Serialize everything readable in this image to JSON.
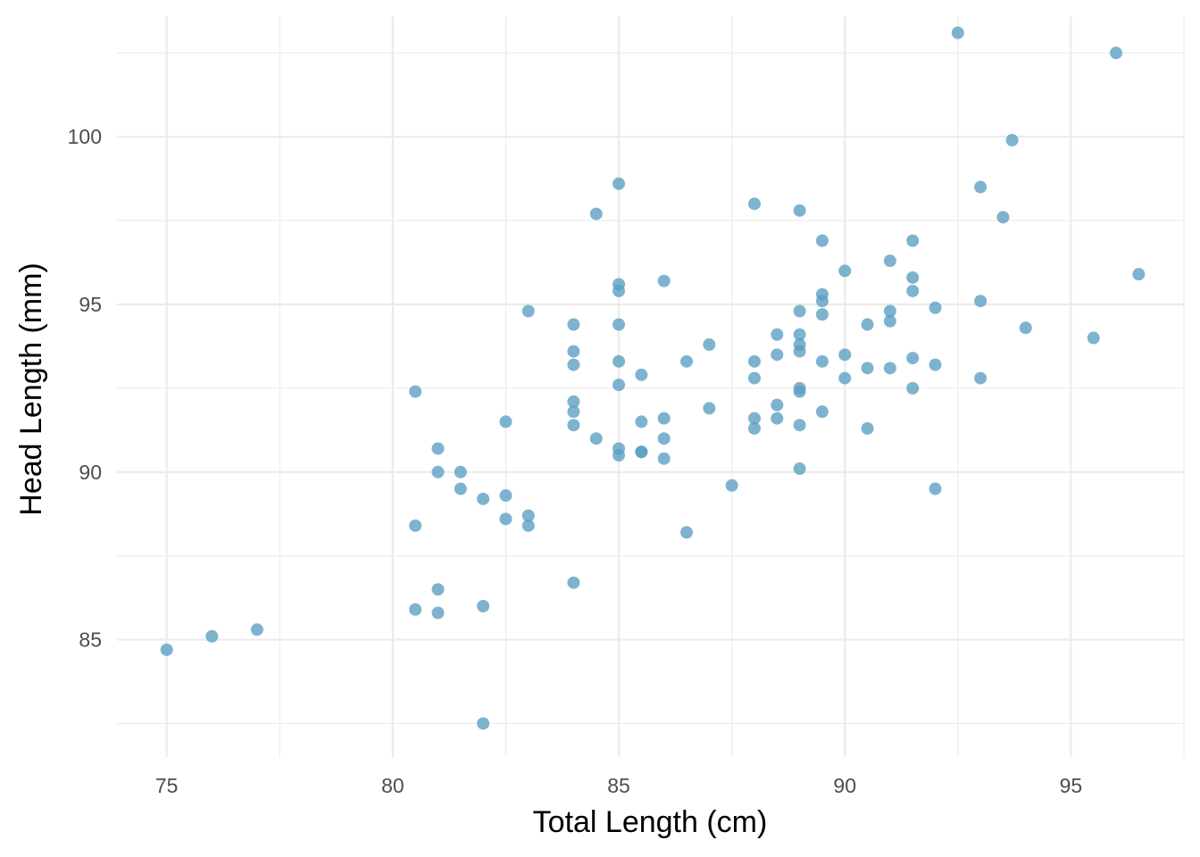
{
  "chart_data": {
    "type": "scatter",
    "xlabel": "Total Length (cm)",
    "ylabel": "Head Length (mm)",
    "xlim": [
      73.9,
      97.5
    ],
    "ylim": [
      81.5,
      103.6
    ],
    "x_ticks": [
      75,
      80,
      85,
      90,
      95
    ],
    "y_ticks": [
      85,
      90,
      95,
      100
    ],
    "grid": true,
    "point_color": "#5a9ec1",
    "points": [
      {
        "x": 75.0,
        "y": 84.7
      },
      {
        "x": 76.0,
        "y": 85.1
      },
      {
        "x": 77.0,
        "y": 85.3
      },
      {
        "x": 80.5,
        "y": 92.4
      },
      {
        "x": 80.5,
        "y": 88.4
      },
      {
        "x": 80.5,
        "y": 85.9
      },
      {
        "x": 81.0,
        "y": 90.7
      },
      {
        "x": 81.0,
        "y": 90.0
      },
      {
        "x": 81.0,
        "y": 86.5
      },
      {
        "x": 81.0,
        "y": 85.8
      },
      {
        "x": 81.5,
        "y": 90.0
      },
      {
        "x": 81.5,
        "y": 89.5
      },
      {
        "x": 82.0,
        "y": 89.2
      },
      {
        "x": 82.0,
        "y": 86.0
      },
      {
        "x": 82.0,
        "y": 82.5
      },
      {
        "x": 82.5,
        "y": 91.5
      },
      {
        "x": 82.5,
        "y": 89.3
      },
      {
        "x": 82.5,
        "y": 88.6
      },
      {
        "x": 83.0,
        "y": 94.8
      },
      {
        "x": 83.0,
        "y": 88.7
      },
      {
        "x": 83.0,
        "y": 88.4
      },
      {
        "x": 84.0,
        "y": 94.4
      },
      {
        "x": 84.0,
        "y": 93.6
      },
      {
        "x": 84.0,
        "y": 93.2
      },
      {
        "x": 84.0,
        "y": 92.1
      },
      {
        "x": 84.0,
        "y": 91.8
      },
      {
        "x": 84.0,
        "y": 91.4
      },
      {
        "x": 84.0,
        "y": 86.7
      },
      {
        "x": 84.5,
        "y": 97.7
      },
      {
        "x": 84.5,
        "y": 91.0
      },
      {
        "x": 85.0,
        "y": 98.6
      },
      {
        "x": 85.0,
        "y": 95.6
      },
      {
        "x": 85.0,
        "y": 95.4
      },
      {
        "x": 85.0,
        "y": 94.4
      },
      {
        "x": 85.0,
        "y": 93.3
      },
      {
        "x": 85.0,
        "y": 92.6
      },
      {
        "x": 85.0,
        "y": 90.7
      },
      {
        "x": 85.0,
        "y": 90.5
      },
      {
        "x": 85.5,
        "y": 92.9
      },
      {
        "x": 85.5,
        "y": 91.5
      },
      {
        "x": 85.5,
        "y": 90.6
      },
      {
        "x": 85.5,
        "y": 90.6
      },
      {
        "x": 86.0,
        "y": 95.7
      },
      {
        "x": 86.0,
        "y": 91.6
      },
      {
        "x": 86.0,
        "y": 91.0
      },
      {
        "x": 86.0,
        "y": 90.4
      },
      {
        "x": 86.5,
        "y": 93.3
      },
      {
        "x": 86.5,
        "y": 88.2
      },
      {
        "x": 87.0,
        "y": 93.8
      },
      {
        "x": 87.0,
        "y": 91.9
      },
      {
        "x": 87.5,
        "y": 89.6
      },
      {
        "x": 88.0,
        "y": 98.0
      },
      {
        "x": 88.0,
        "y": 93.3
      },
      {
        "x": 88.0,
        "y": 92.8
      },
      {
        "x": 88.0,
        "y": 91.6
      },
      {
        "x": 88.0,
        "y": 91.3
      },
      {
        "x": 88.5,
        "y": 94.1
      },
      {
        "x": 88.5,
        "y": 93.5
      },
      {
        "x": 88.5,
        "y": 92.0
      },
      {
        "x": 88.5,
        "y": 91.6
      },
      {
        "x": 89.0,
        "y": 97.8
      },
      {
        "x": 89.0,
        "y": 94.8
      },
      {
        "x": 89.0,
        "y": 94.1
      },
      {
        "x": 89.0,
        "y": 93.8
      },
      {
        "x": 89.0,
        "y": 93.6
      },
      {
        "x": 89.0,
        "y": 92.5
      },
      {
        "x": 89.0,
        "y": 92.4
      },
      {
        "x": 89.0,
        "y": 91.4
      },
      {
        "x": 89.0,
        "y": 90.1
      },
      {
        "x": 89.5,
        "y": 96.9
      },
      {
        "x": 89.5,
        "y": 95.3
      },
      {
        "x": 89.5,
        "y": 95.1
      },
      {
        "x": 89.5,
        "y": 94.7
      },
      {
        "x": 89.5,
        "y": 93.3
      },
      {
        "x": 89.5,
        "y": 91.8
      },
      {
        "x": 90.0,
        "y": 96.0
      },
      {
        "x": 90.0,
        "y": 93.5
      },
      {
        "x": 90.0,
        "y": 92.8
      },
      {
        "x": 90.5,
        "y": 94.4
      },
      {
        "x": 90.5,
        "y": 93.1
      },
      {
        "x": 90.5,
        "y": 91.3
      },
      {
        "x": 91.0,
        "y": 96.3
      },
      {
        "x": 91.0,
        "y": 94.8
      },
      {
        "x": 91.0,
        "y": 94.5
      },
      {
        "x": 91.0,
        "y": 93.1
      },
      {
        "x": 91.5,
        "y": 96.9
      },
      {
        "x": 91.5,
        "y": 95.8
      },
      {
        "x": 91.5,
        "y": 95.4
      },
      {
        "x": 91.5,
        "y": 93.4
      },
      {
        "x": 91.5,
        "y": 92.5
      },
      {
        "x": 92.0,
        "y": 94.9
      },
      {
        "x": 92.0,
        "y": 93.2
      },
      {
        "x": 92.0,
        "y": 89.5
      },
      {
        "x": 92.5,
        "y": 103.1
      },
      {
        "x": 93.0,
        "y": 98.5
      },
      {
        "x": 93.0,
        "y": 95.1
      },
      {
        "x": 93.0,
        "y": 92.8
      },
      {
        "x": 93.5,
        "y": 97.6
      },
      {
        "x": 93.7,
        "y": 99.9
      },
      {
        "x": 94.0,
        "y": 94.3
      },
      {
        "x": 95.5,
        "y": 94.0
      },
      {
        "x": 96.0,
        "y": 102.5
      },
      {
        "x": 96.5,
        "y": 95.9
      }
    ]
  }
}
